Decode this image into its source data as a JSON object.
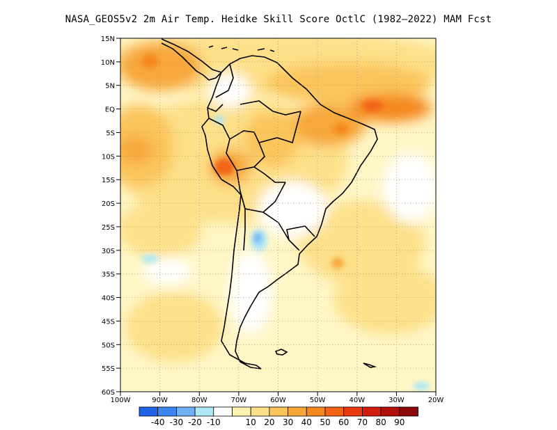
{
  "title": "NASA_GEOS5v2  2m Air Temp. Heidke Skill Score OctlC (1982–2022) MAM Fcst",
  "map": {
    "lat_labels": [
      "15N",
      "10N",
      "5N",
      "EQ",
      "5S",
      "10S",
      "15S",
      "20S",
      "25S",
      "30S",
      "35S",
      "40S",
      "45S",
      "50S",
      "55S",
      "60S"
    ],
    "lon_labels": [
      "100W",
      "90W",
      "80W",
      "70W",
      "60W",
      "50W",
      "40W",
      "30W",
      "20W"
    ]
  },
  "colorbar": {
    "colors": [
      "#1e63e8",
      "#3b86f0",
      "#6fb0f4",
      "#aee8f6",
      "#ffffff",
      "#fff3b0",
      "#fde089",
      "#fbc55c",
      "#f7a73a",
      "#f5871f",
      "#f26318",
      "#ea3a10",
      "#d01d0d",
      "#b0100c",
      "#8c0a0a"
    ],
    "labels": [
      "-40",
      "-30",
      "-20",
      "-10",
      "10",
      "20",
      "30",
      "40",
      "50",
      "60",
      "70",
      "80",
      "90"
    ]
  }
}
